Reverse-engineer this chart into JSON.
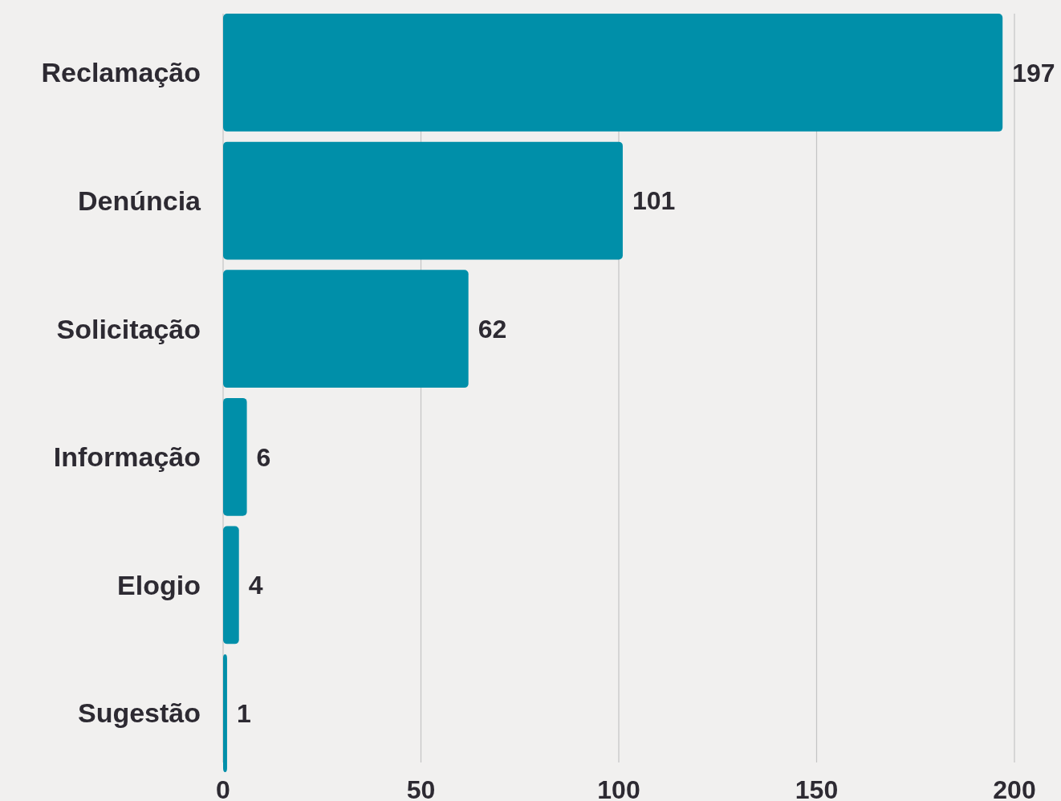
{
  "chart_data": {
    "type": "bar",
    "orientation": "horizontal",
    "categories": [
      "Reclamação",
      "Denúncia",
      "Solicitação",
      "Informação",
      "Elogio",
      "Sugestão"
    ],
    "values": [
      197,
      101,
      62,
      6,
      4,
      1
    ],
    "color": "#008fa9",
    "xlim": [
      0,
      200
    ],
    "xticks": [
      0,
      50,
      100,
      150,
      200
    ],
    "grid": "x",
    "data_labels": true
  }
}
